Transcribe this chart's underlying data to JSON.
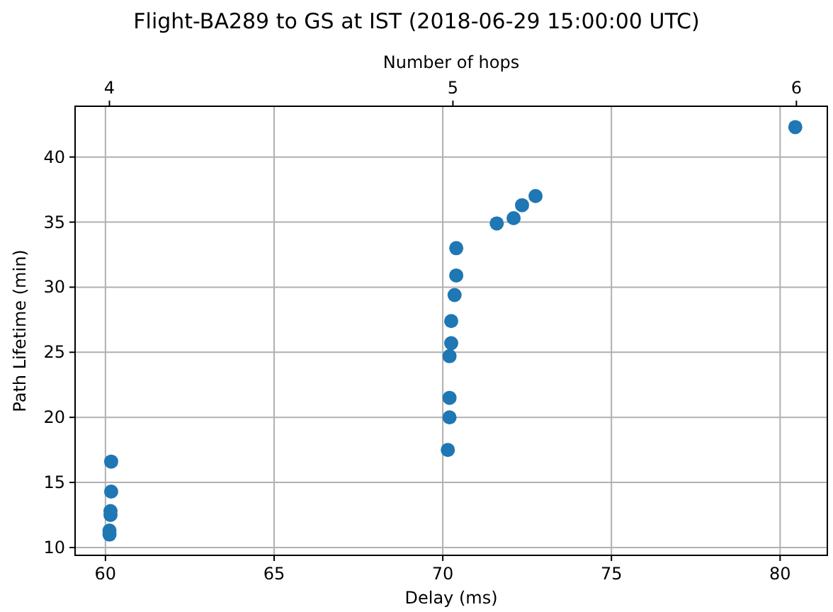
{
  "chart_data": {
    "type": "scatter",
    "title": "Flight-BA289 to GS at IST (2018-06-29 15:00:00 UTC)",
    "xlabel": "Delay (ms)",
    "ylabel": "Path Lifetime (min)",
    "x2label": "Number of hops",
    "x": [
      60.17,
      60.17,
      60.15,
      60.15,
      60.12,
      60.12,
      70.4,
      70.4,
      70.35,
      70.25,
      70.25,
      70.2,
      70.2,
      70.2,
      70.15,
      71.6,
      72.1,
      72.35,
      72.75,
      80.45
    ],
    "series": [
      {
        "color": "#1f77b4",
        "values": [
          16.6,
          14.3,
          12.8,
          12.5,
          11.3,
          11.0,
          33.0,
          30.9,
          29.4,
          27.4,
          25.7,
          24.7,
          21.5,
          20.0,
          17.5,
          34.9,
          35.3,
          36.3,
          37.0,
          42.3
        ]
      }
    ],
    "xlim": [
      59.1,
      81.4
    ],
    "xticks": [
      60,
      65,
      70,
      75,
      80
    ],
    "ylim": [
      9.4,
      43.9
    ],
    "yticks": [
      10,
      15,
      20,
      25,
      30,
      35,
      40
    ],
    "x2lim": [
      3.9,
      6.09
    ],
    "x2ticks": [
      4,
      5,
      6
    ],
    "grid": true,
    "marker": "circle"
  }
}
